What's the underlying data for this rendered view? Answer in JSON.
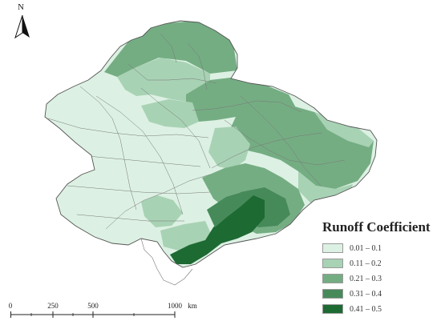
{
  "legend": {
    "title": "Runoff Coefficient",
    "items": [
      {
        "label": "0.01 – 0.1",
        "color": "#dcf1e3"
      },
      {
        "label": "0.11 – 0.2",
        "color": "#a8d2b4"
      },
      {
        "label": "0.21 – 0.3",
        "color": "#75ad83"
      },
      {
        "label": "0.31 – 0.4",
        "color": "#478a5a"
      },
      {
        "label": "0.41 – 0.5",
        "color": "#1d6a33"
      }
    ]
  },
  "north_arrow": {
    "label": "N"
  },
  "scale_bar": {
    "ticks": [
      "0",
      "250",
      "500",
      "1000"
    ],
    "unit": "km"
  }
}
